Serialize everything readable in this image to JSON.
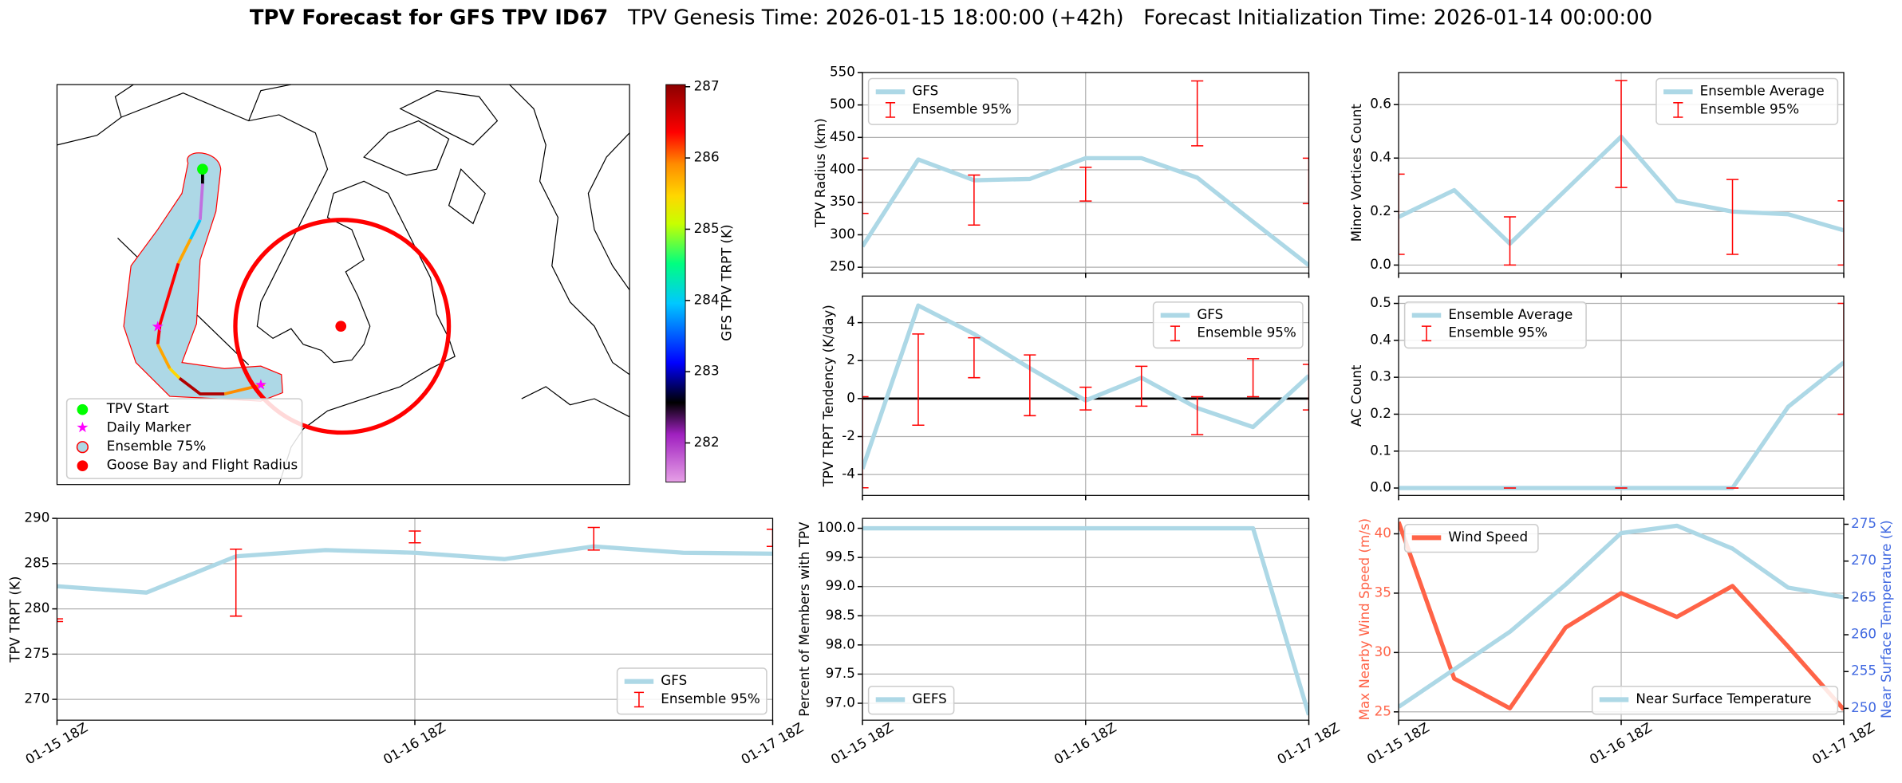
{
  "title": "TPV Forecast for GFS TPV ID67",
  "subtitle": "TPV Genesis Time: 2026-01-15 18:00:00 (+42h)   Forecast Initialization Time: 2026-01-14 00:00:00",
  "chart_data": [
    {
      "type": "map",
      "colorbar": {
        "label": "GFS TPV TRPT (K)",
        "clim": [
          281.45,
          287.03
        ],
        "ticks": [
          282,
          283,
          284,
          285,
          286,
          287
        ]
      },
      "legend": [
        "TPV Start",
        "Daily Marker",
        "Ensemble 75%",
        "Goose Bay and Flight Radius"
      ]
    },
    {
      "type": "line",
      "ylabel": "TPV TRPT (K)",
      "categories": [
        "01-15 18Z",
        null,
        null,
        null,
        "01-16 18Z",
        null,
        null,
        null,
        "01-17 18Z"
      ],
      "xticks": [
        0,
        4,
        8
      ],
      "ylim": [
        267.7,
        290
      ],
      "yticks": [
        270,
        275,
        280,
        285,
        290
      ],
      "grid": true,
      "legend": "lower right",
      "series": [
        {
          "name": "GFS",
          "color": "#add8e6",
          "values": [
            282.5,
            281.8,
            285.8,
            286.5,
            286.2,
            285.5,
            286.9,
            286.2,
            286.1
          ]
        },
        {
          "name": "Ensemble 95%",
          "type": "errorbar",
          "color": "#ff0000",
          "low": [
            278.6,
            null,
            279.2,
            null,
            287.3,
            null,
            286.5,
            null,
            286.9
          ],
          "high": [
            278.9,
            null,
            286.6,
            null,
            288.6,
            null,
            289.0,
            null,
            288.8
          ]
        }
      ]
    },
    {
      "type": "line",
      "ylabel": "TPV Radius (km)",
      "categories": [
        null,
        null,
        null,
        null,
        null,
        null,
        null,
        null,
        null
      ],
      "xticks": [
        0,
        4,
        8
      ],
      "ylim": [
        241,
        550
      ],
      "yticks": [
        250,
        300,
        350,
        400,
        450,
        500,
        550
      ],
      "grid": true,
      "legend": "upper left",
      "series": [
        {
          "name": "GFS",
          "color": "#add8e6",
          "values": [
            282,
            416,
            384,
            386,
            418,
            418,
            388,
            320,
            253
          ]
        },
        {
          "name": "Ensemble 95%",
          "type": "errorbar",
          "color": "#ff0000",
          "low": [
            333,
            null,
            315,
            null,
            352,
            null,
            437,
            null,
            348
          ],
          "high": [
            418,
            null,
            392,
            null,
            404,
            null,
            537,
            null,
            418
          ]
        }
      ]
    },
    {
      "type": "line",
      "ylabel": "TPV TRPT Tendency (K/day)",
      "categories": [
        null,
        null,
        null,
        null,
        null,
        null,
        null,
        null,
        null
      ],
      "xticks": [
        0,
        4,
        8
      ],
      "ylim": [
        -5.1,
        5.4
      ],
      "yticks": [
        -4,
        -2,
        0,
        2,
        4
      ],
      "grid": true,
      "legend": "upper right",
      "hlines": [
        0
      ],
      "series": [
        {
          "name": "GFS",
          "color": "#add8e6",
          "values": [
            -3.7,
            4.9,
            3.4,
            1.6,
            -0.1,
            1.1,
            -0.5,
            -1.5,
            1.2
          ]
        },
        {
          "name": "Ensemble 95%",
          "type": "errorbar",
          "color": "#ff0000",
          "low": [
            -4.7,
            -1.4,
            1.1,
            -0.9,
            -0.6,
            -0.4,
            -1.9,
            0.1,
            -0.6
          ],
          "high": [
            0.1,
            3.4,
            3.2,
            2.3,
            0.6,
            1.7,
            0.1,
            2.1,
            1.8
          ]
        }
      ]
    },
    {
      "type": "line",
      "ylabel": "Percent of Members with TPV",
      "categories": [
        "01-15 18Z",
        null,
        null,
        null,
        "01-16 18Z",
        null,
        null,
        null,
        "01-17 18Z"
      ],
      "xticks": [
        0,
        4,
        8
      ],
      "ylim": [
        96.71,
        100.17
      ],
      "yticks": [
        {
          "value": 97,
          "label": "97.0"
        },
        97.5,
        {
          "value": 98,
          "label": "98.0"
        },
        98.5,
        {
          "value": 99,
          "label": "99.0"
        },
        99.5,
        {
          "value": 100,
          "label": "100.0"
        }
      ],
      "grid": true,
      "legend": "lower left",
      "series": [
        {
          "name": "GEFS",
          "color": "#add8e6",
          "values": [
            100,
            100,
            100,
            100,
            100,
            100,
            100,
            100,
            96.8
          ]
        }
      ]
    },
    {
      "type": "line",
      "ylabel": "Minor Vortices Count",
      "categories": [
        null,
        null,
        null,
        null,
        null,
        null,
        null,
        null,
        null
      ],
      "xticks": [
        0,
        4,
        8
      ],
      "ylim": [
        -0.03,
        0.72
      ],
      "yticks": [
        {
          "value": 0,
          "label": "0.0"
        },
        0.2,
        0.4,
        0.6
      ],
      "grid": true,
      "legend": "upper right",
      "series": [
        {
          "name": "Ensemble Average",
          "color": "#add8e6",
          "values": [
            0.18,
            0.28,
            0.08,
            0.28,
            0.48,
            0.24,
            0.2,
            0.19,
            0.13
          ]
        },
        {
          "name": "Ensemble 95%",
          "type": "errorbar",
          "color": "#ff0000",
          "low": [
            0.04,
            null,
            0,
            null,
            0.29,
            null,
            0.04,
            null,
            0
          ],
          "high": [
            0.34,
            null,
            0.18,
            null,
            0.69,
            null,
            0.32,
            null,
            0.24
          ]
        }
      ]
    },
    {
      "type": "line",
      "ylabel": "AC Count",
      "categories": [
        null,
        null,
        null,
        null,
        null,
        null,
        null,
        null,
        null
      ],
      "xticks": [
        0,
        4,
        8
      ],
      "ylim": [
        -0.02,
        0.52
      ],
      "yticks": [
        {
          "value": 0,
          "label": "0.0"
        },
        0.1,
        0.2,
        0.3,
        0.4,
        0.5
      ],
      "grid": true,
      "legend": "upper left",
      "series": [
        {
          "name": "Ensemble Average",
          "color": "#add8e6",
          "values": [
            0,
            0,
            0,
            0,
            0,
            0,
            0,
            0.22,
            0.34
          ]
        },
        {
          "name": "Ensemble 95%",
          "type": "errorbar",
          "color": "#ff0000",
          "low": [
            null,
            null,
            0,
            null,
            0,
            null,
            0,
            null,
            0.2
          ],
          "high": [
            null,
            null,
            0,
            null,
            0,
            null,
            0,
            null,
            0.5
          ]
        }
      ]
    },
    {
      "type": "line",
      "ylabel": "Max Nearby Wind Speed (m/s)",
      "ylabel_color": "#ff6347",
      "y2label": "Near Surface Temperature (K)",
      "y2label_color": "#4169e1",
      "categories": [
        "01-15 18Z",
        null,
        null,
        null,
        "01-16 18Z",
        null,
        null,
        null,
        "01-17 18Z"
      ],
      "xticks": [
        0,
        4,
        8
      ],
      "ylim": [
        24.3,
        41.3
      ],
      "yticks": [
        25,
        30,
        35,
        40
      ],
      "y2lim": [
        248.4,
        275.8
      ],
      "y2ticks": [
        250,
        255,
        260,
        265,
        270,
        275
      ],
      "grid": true,
      "legend": "upper left",
      "legend2": "lower right",
      "series": [
        {
          "name": "Wind Speed",
          "color": "#ff6347",
          "values": [
            41,
            27.8,
            25.3,
            32.1,
            35.0,
            33.0,
            35.6,
            30.5,
            25.2
          ]
        },
        {
          "name": "Near Surface Temperature",
          "color": "#add8e6",
          "axis": "y2",
          "values": [
            250.2,
            255.3,
            260.4,
            266.8,
            273.8,
            274.8,
            271.7,
            266.4,
            265.1
          ]
        }
      ]
    }
  ]
}
